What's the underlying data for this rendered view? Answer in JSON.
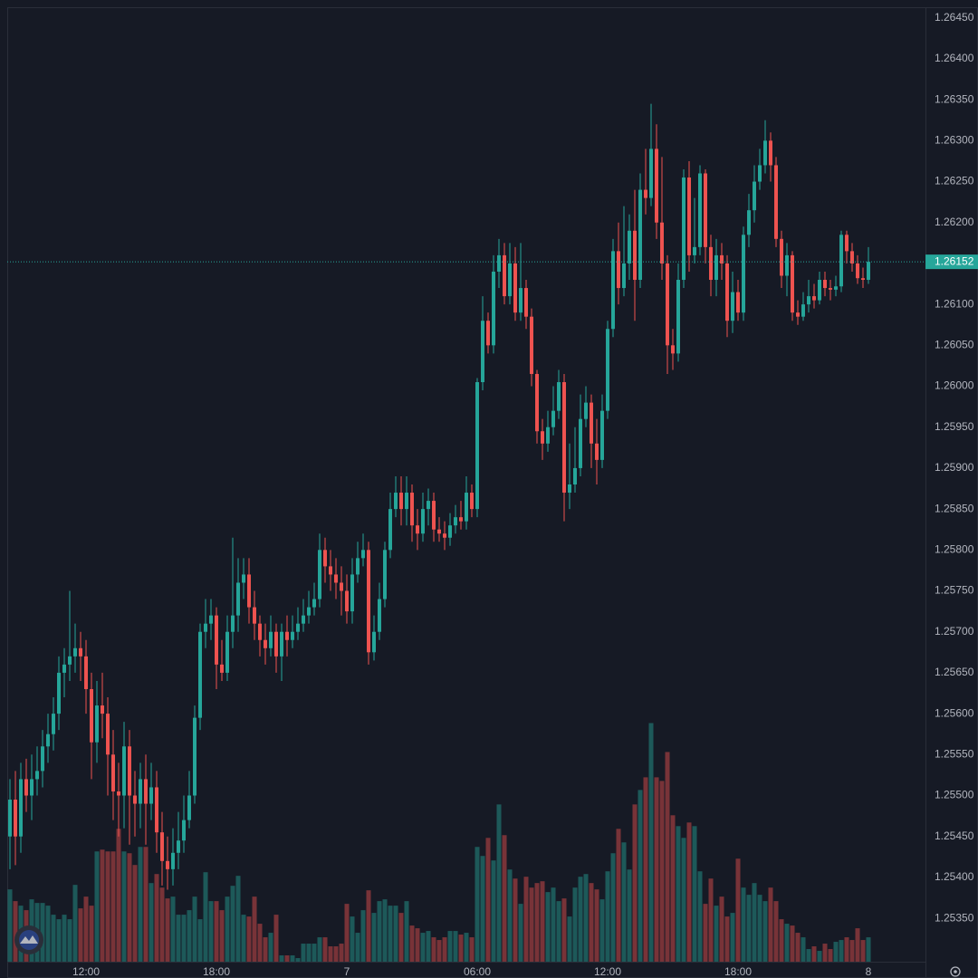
{
  "chart_data": {
    "type": "candlestick",
    "up_color": "#26a69a",
    "down_color": "#ef5350",
    "grid": true,
    "xlim": [
      -0.5,
      168.5
    ],
    "xticks": [
      {
        "value": 14,
        "label": "12:00"
      },
      {
        "value": 38,
        "label": "18:00"
      },
      {
        "value": 62,
        "label": "7"
      },
      {
        "value": 86,
        "label": "06:00"
      },
      {
        "value": 110,
        "label": "12:00"
      },
      {
        "value": 134,
        "label": "18:00"
      },
      {
        "value": 158,
        "label": "8"
      }
    ],
    "ylim": [
      1.25297,
      1.26463
    ],
    "yticks": [
      {
        "value": 1.2535,
        "label": "1.25350"
      },
      {
        "value": 1.254,
        "label": "1.25400"
      },
      {
        "value": 1.2545,
        "label": "1.25450"
      },
      {
        "value": 1.255,
        "label": "1.25500"
      },
      {
        "value": 1.2555,
        "label": "1.25550"
      },
      {
        "value": 1.256,
        "label": "1.25600"
      },
      {
        "value": 1.2565,
        "label": "1.25650"
      },
      {
        "value": 1.257,
        "label": "1.25700"
      },
      {
        "value": 1.2575,
        "label": "1.25750"
      },
      {
        "value": 1.258,
        "label": "1.25800"
      },
      {
        "value": 1.2585,
        "label": "1.25850"
      },
      {
        "value": 1.259,
        "label": "1.25900"
      },
      {
        "value": 1.2595,
        "label": "1.25950"
      },
      {
        "value": 1.26,
        "label": "1.26000"
      },
      {
        "value": 1.2605,
        "label": "1.26050"
      },
      {
        "value": 1.261,
        "label": "1.26100"
      },
      {
        "value": 1.2615,
        "label": "1.26150"
      },
      {
        "value": 1.262,
        "label": "1.26200"
      },
      {
        "value": 1.2625,
        "label": "1.26250"
      },
      {
        "value": 1.263,
        "label": "1.26300"
      },
      {
        "value": 1.2635,
        "label": "1.26350"
      },
      {
        "value": 1.264,
        "label": "1.26400"
      },
      {
        "value": 1.2645,
        "label": "1.26450"
      }
    ],
    "last_price": {
      "value": 1.26152,
      "label": "1.26152"
    },
    "open": [
      1.2545,
      1.25495,
      1.2545,
      1.2552,
      1.255,
      1.2552,
      1.2553,
      1.2556,
      1.25575,
      1.256,
      1.2565,
      1.2566,
      1.2567,
      1.2568,
      1.2567,
      1.2563,
      1.25565,
      1.2561,
      1.256,
      1.2555,
      1.25505,
      1.255,
      1.2556,
      1.255,
      1.2549,
      1.2552,
      1.2549,
      1.2551,
      1.25455,
      1.2542,
      1.2541,
      1.2543,
      1.25445,
      1.2547,
      1.255,
      1.25595,
      1.257,
      1.2571,
      1.2572,
      1.2566,
      1.2565,
      1.257,
      1.2572,
      1.2576,
      1.2577,
      1.2573,
      1.2571,
      1.2569,
      1.2568,
      1.257,
      1.2567,
      1.257,
      1.2569,
      1.257,
      1.2571,
      1.2572,
      1.2573,
      1.2574,
      1.258,
      1.2578,
      1.2577,
      1.2576,
      1.2575,
      1.25725,
      1.2577,
      1.2579,
      1.258,
      1.25675,
      1.257,
      1.2574,
      1.258,
      1.2585,
      1.2587,
      1.2585,
      1.2587,
      1.2583,
      1.2582,
      1.2585,
      1.2586,
      1.25825,
      1.2582,
      1.25815,
      1.2583,
      1.2584,
      1.25835,
      1.2587,
      1.2585,
      1.26005,
      1.2608,
      1.2605,
      1.2614,
      1.2616,
      1.2611,
      1.2615,
      1.2609,
      1.2612,
      1.26085,
      1.26015,
      1.25945,
      1.2593,
      1.2595,
      1.2597,
      1.26005,
      1.2587,
      1.2588,
      1.259,
      1.2596,
      1.2598,
      1.2593,
      1.2591,
      1.2597,
      1.2607,
      1.26165,
      1.2612,
      1.2615,
      1.2619,
      1.2613,
      1.2624,
      1.2623,
      1.2629,
      1.262,
      1.2615,
      1.2605,
      1.2604,
      1.2613,
      1.26255,
      1.2616,
      1.2617,
      1.2626,
      1.2617,
      1.2613,
      1.2616,
      1.2615,
      1.2608,
      1.26115,
      1.2609,
      1.26185,
      1.26215,
      1.2625,
      1.2627,
      1.263,
      1.2627,
      1.2618,
      1.26135,
      1.2616,
      1.2609,
      1.26085,
      1.261,
      1.2611,
      1.26105,
      1.2613,
      1.2612,
      1.26118,
      1.26122,
      1.26185,
      1.26165,
      1.2615,
      1.26132,
      1.2613
    ],
    "high": [
      1.2552,
      1.2553,
      1.2554,
      1.25545,
      1.2555,
      1.2556,
      1.2558,
      1.256,
      1.2562,
      1.2567,
      1.2568,
      1.2575,
      1.2571,
      1.257,
      1.2569,
      1.2565,
      1.2564,
      1.2565,
      1.2562,
      1.2558,
      1.2554,
      1.2559,
      1.2558,
      1.2553,
      1.2554,
      1.2555,
      1.2554,
      1.2553,
      1.2548,
      1.2545,
      1.2546,
      1.2548,
      1.255,
      1.2553,
      1.2561,
      1.2571,
      1.2574,
      1.2574,
      1.2573,
      1.2569,
      1.2572,
      1.25815,
      1.2579,
      1.2579,
      1.2579,
      1.2575,
      1.2572,
      1.2571,
      1.2572,
      1.2571,
      1.2571,
      1.2572,
      1.2572,
      1.2573,
      1.2574,
      1.2575,
      1.2576,
      1.2582,
      1.25815,
      1.258,
      1.2579,
      1.2578,
      1.2577,
      1.2579,
      1.2581,
      1.2582,
      1.2581,
      1.2572,
      1.2576,
      1.2581,
      1.2587,
      1.2589,
      1.2589,
      1.2589,
      1.2588,
      1.2585,
      1.2587,
      1.25875,
      1.2587,
      1.2584,
      1.25835,
      1.25845,
      1.25855,
      1.2586,
      1.2589,
      1.2588,
      1.2601,
      1.2611,
      1.2609,
      1.2616,
      1.2618,
      1.26175,
      1.26175,
      1.2617,
      1.26175,
      1.2613,
      1.26095,
      1.2602,
      1.2596,
      1.2597,
      1.26,
      1.2602,
      1.26015,
      1.2593,
      1.2595,
      1.2599,
      1.26,
      1.2599,
      1.2596,
      1.2599,
      1.2608,
      1.2618,
      1.262,
      1.2622,
      1.2621,
      1.2624,
      1.2626,
      1.2629,
      1.26345,
      1.2632,
      1.2628,
      1.2616,
      1.2607,
      1.2615,
      1.26265,
      1.26275,
      1.2623,
      1.2627,
      1.26265,
      1.26185,
      1.2618,
      1.26175,
      1.2616,
      1.2614,
      1.2613,
      1.26195,
      1.26235,
      1.2627,
      1.2629,
      1.26325,
      1.2631,
      1.2628,
      1.2619,
      1.26175,
      1.26165,
      1.26105,
      1.26115,
      1.2613,
      1.26125,
      1.2614,
      1.2614,
      1.2613,
      1.26135,
      1.2619,
      1.2619,
      1.26175,
      1.2616,
      1.26145,
      1.2617
    ],
    "low": [
      1.2541,
      1.25415,
      1.2543,
      1.2548,
      1.2547,
      1.255,
      1.2551,
      1.2554,
      1.25555,
      1.2558,
      1.2562,
      1.2564,
      1.2565,
      1.2564,
      1.256,
      1.2552,
      1.2554,
      1.2557,
      1.255,
      1.2547,
      1.2545,
      1.2546,
      1.2544,
      1.2545,
      1.2546,
      1.2544,
      1.2547,
      1.2543,
      1.2539,
      1.25385,
      1.2539,
      1.2541,
      1.2543,
      1.2546,
      1.2549,
      1.2558,
      1.2568,
      1.2569,
      1.2563,
      1.2564,
      1.2564,
      1.2568,
      1.257,
      1.2574,
      1.2571,
      1.2569,
      1.2567,
      1.2566,
      1.2567,
      1.2565,
      1.2564,
      1.2567,
      1.2568,
      1.2569,
      1.257,
      1.2571,
      1.2572,
      1.2573,
      1.2576,
      1.2575,
      1.2574,
      1.2572,
      1.2571,
      1.2571,
      1.2576,
      1.2578,
      1.2566,
      1.25665,
      1.2569,
      1.2573,
      1.2579,
      1.2584,
      1.2583,
      1.2583,
      1.2581,
      1.258,
      1.2581,
      1.2583,
      1.2581,
      1.2581,
      1.258,
      1.25805,
      1.2582,
      1.25825,
      1.25825,
      1.2584,
      1.2584,
      1.25995,
      1.2604,
      1.2604,
      1.2612,
      1.261,
      1.261,
      1.2608,
      1.2608,
      1.2607,
      1.26,
      1.2593,
      1.2591,
      1.2592,
      1.2594,
      1.2596,
      1.25835,
      1.2585,
      1.2587,
      1.2589,
      1.2595,
      1.259,
      1.2588,
      1.259,
      1.2596,
      1.2606,
      1.261,
      1.2611,
      1.2613,
      1.2608,
      1.2612,
      1.2621,
      1.2622,
      1.2618,
      1.2613,
      1.26015,
      1.2602,
      1.2603,
      1.2612,
      1.2614,
      1.2615,
      1.2616,
      1.2615,
      1.2611,
      1.2611,
      1.2613,
      1.2606,
      1.26065,
      1.2608,
      1.2608,
      1.2617,
      1.262,
      1.2624,
      1.2626,
      1.2625,
      1.2617,
      1.2612,
      1.2611,
      1.2608,
      1.26075,
      1.2608,
      1.2609,
      1.26095,
      1.261,
      1.2611,
      1.26105,
      1.2611,
      1.26115,
      1.2615,
      1.2614,
      1.26125,
      1.2612,
      1.26125
    ],
    "close": [
      1.25495,
      1.2545,
      1.2552,
      1.255,
      1.2552,
      1.2553,
      1.2556,
      1.25575,
      1.256,
      1.2565,
      1.2566,
      1.2567,
      1.2568,
      1.2567,
      1.2563,
      1.25565,
      1.2561,
      1.256,
      1.2555,
      1.25505,
      1.255,
      1.2556,
      1.255,
      1.2549,
      1.2552,
      1.2549,
      1.2551,
      1.25455,
      1.2542,
      1.2541,
      1.2543,
      1.25445,
      1.2547,
      1.255,
      1.25595,
      1.257,
      1.2571,
      1.2572,
      1.2566,
      1.2565,
      1.257,
      1.2572,
      1.2576,
      1.2577,
      1.2573,
      1.2571,
      1.2569,
      1.2568,
      1.257,
      1.2567,
      1.257,
      1.2569,
      1.257,
      1.2571,
      1.2572,
      1.2573,
      1.2574,
      1.258,
      1.2578,
      1.2577,
      1.2576,
      1.2575,
      1.25725,
      1.2577,
      1.2579,
      1.258,
      1.25675,
      1.257,
      1.2574,
      1.258,
      1.2585,
      1.2587,
      1.2585,
      1.2587,
      1.2583,
      1.2582,
      1.2585,
      1.2586,
      1.25825,
      1.2582,
      1.25815,
      1.2583,
      1.2584,
      1.25835,
      1.2587,
      1.2585,
      1.26005,
      1.2608,
      1.2605,
      1.2614,
      1.2616,
      1.2611,
      1.2615,
      1.2609,
      1.2612,
      1.26085,
      1.26015,
      1.25945,
      1.2593,
      1.2595,
      1.2597,
      1.26005,
      1.2587,
      1.2588,
      1.259,
      1.2596,
      1.2598,
      1.2593,
      1.2591,
      1.2597,
      1.2607,
      1.26165,
      1.2612,
      1.2615,
      1.2619,
      1.2613,
      1.2624,
      1.2623,
      1.2629,
      1.262,
      1.2615,
      1.2605,
      1.2604,
      1.2613,
      1.26255,
      1.2616,
      1.2617,
      1.2626,
      1.2617,
      1.2613,
      1.2616,
      1.2615,
      1.2608,
      1.26115,
      1.2609,
      1.26185,
      1.26215,
      1.2625,
      1.2627,
      1.263,
      1.2627,
      1.2618,
      1.26135,
      1.2616,
      1.2609,
      1.26085,
      1.261,
      1.2611,
      1.26105,
      1.2613,
      1.2612,
      1.26118,
      1.26122,
      1.26185,
      1.26165,
      1.2615,
      1.26132,
      1.2613,
      1.26152
    ],
    "volume": [
      80,
      67,
      62,
      57,
      69,
      65,
      65,
      62,
      52,
      47,
      52,
      47,
      85,
      59,
      72,
      62,
      122,
      124,
      122,
      122,
      147,
      122,
      120,
      107,
      127,
      127,
      87,
      97,
      82,
      70,
      72,
      52,
      52,
      57,
      72,
      47,
      99,
      67,
      67,
      57,
      72,
      84,
      95,
      52,
      50,
      72,
      42,
      27,
      32,
      52,
      7,
      7,
      7,
      4,
      20,
      20,
      20,
      27,
      27,
      17,
      17,
      20,
      64,
      50,
      32,
      57,
      79,
      54,
      67,
      69,
      62,
      62,
      54,
      67,
      40,
      37,
      32,
      34,
      27,
      24,
      27,
      34,
      34,
      30,
      32,
      27,
      127,
      117,
      137,
      112,
      174,
      140,
      102,
      92,
      64,
      94,
      82,
      87,
      89,
      77,
      82,
      67,
      70,
      50,
      82,
      94,
      97,
      87,
      80,
      69,
      100,
      120,
      147,
      132,
      102,
      174,
      190,
      204,
      264,
      204,
      200,
      232,
      162,
      150,
      137,
      154,
      150,
      100,
      64,
      92,
      62,
      72,
      50,
      54,
      114,
      82,
      74,
      87,
      74,
      67,
      82,
      67,
      47,
      42,
      40,
      32,
      27,
      14,
      17,
      12,
      20,
      14,
      22,
      24,
      27,
      24,
      37,
      24,
      27
    ]
  }
}
